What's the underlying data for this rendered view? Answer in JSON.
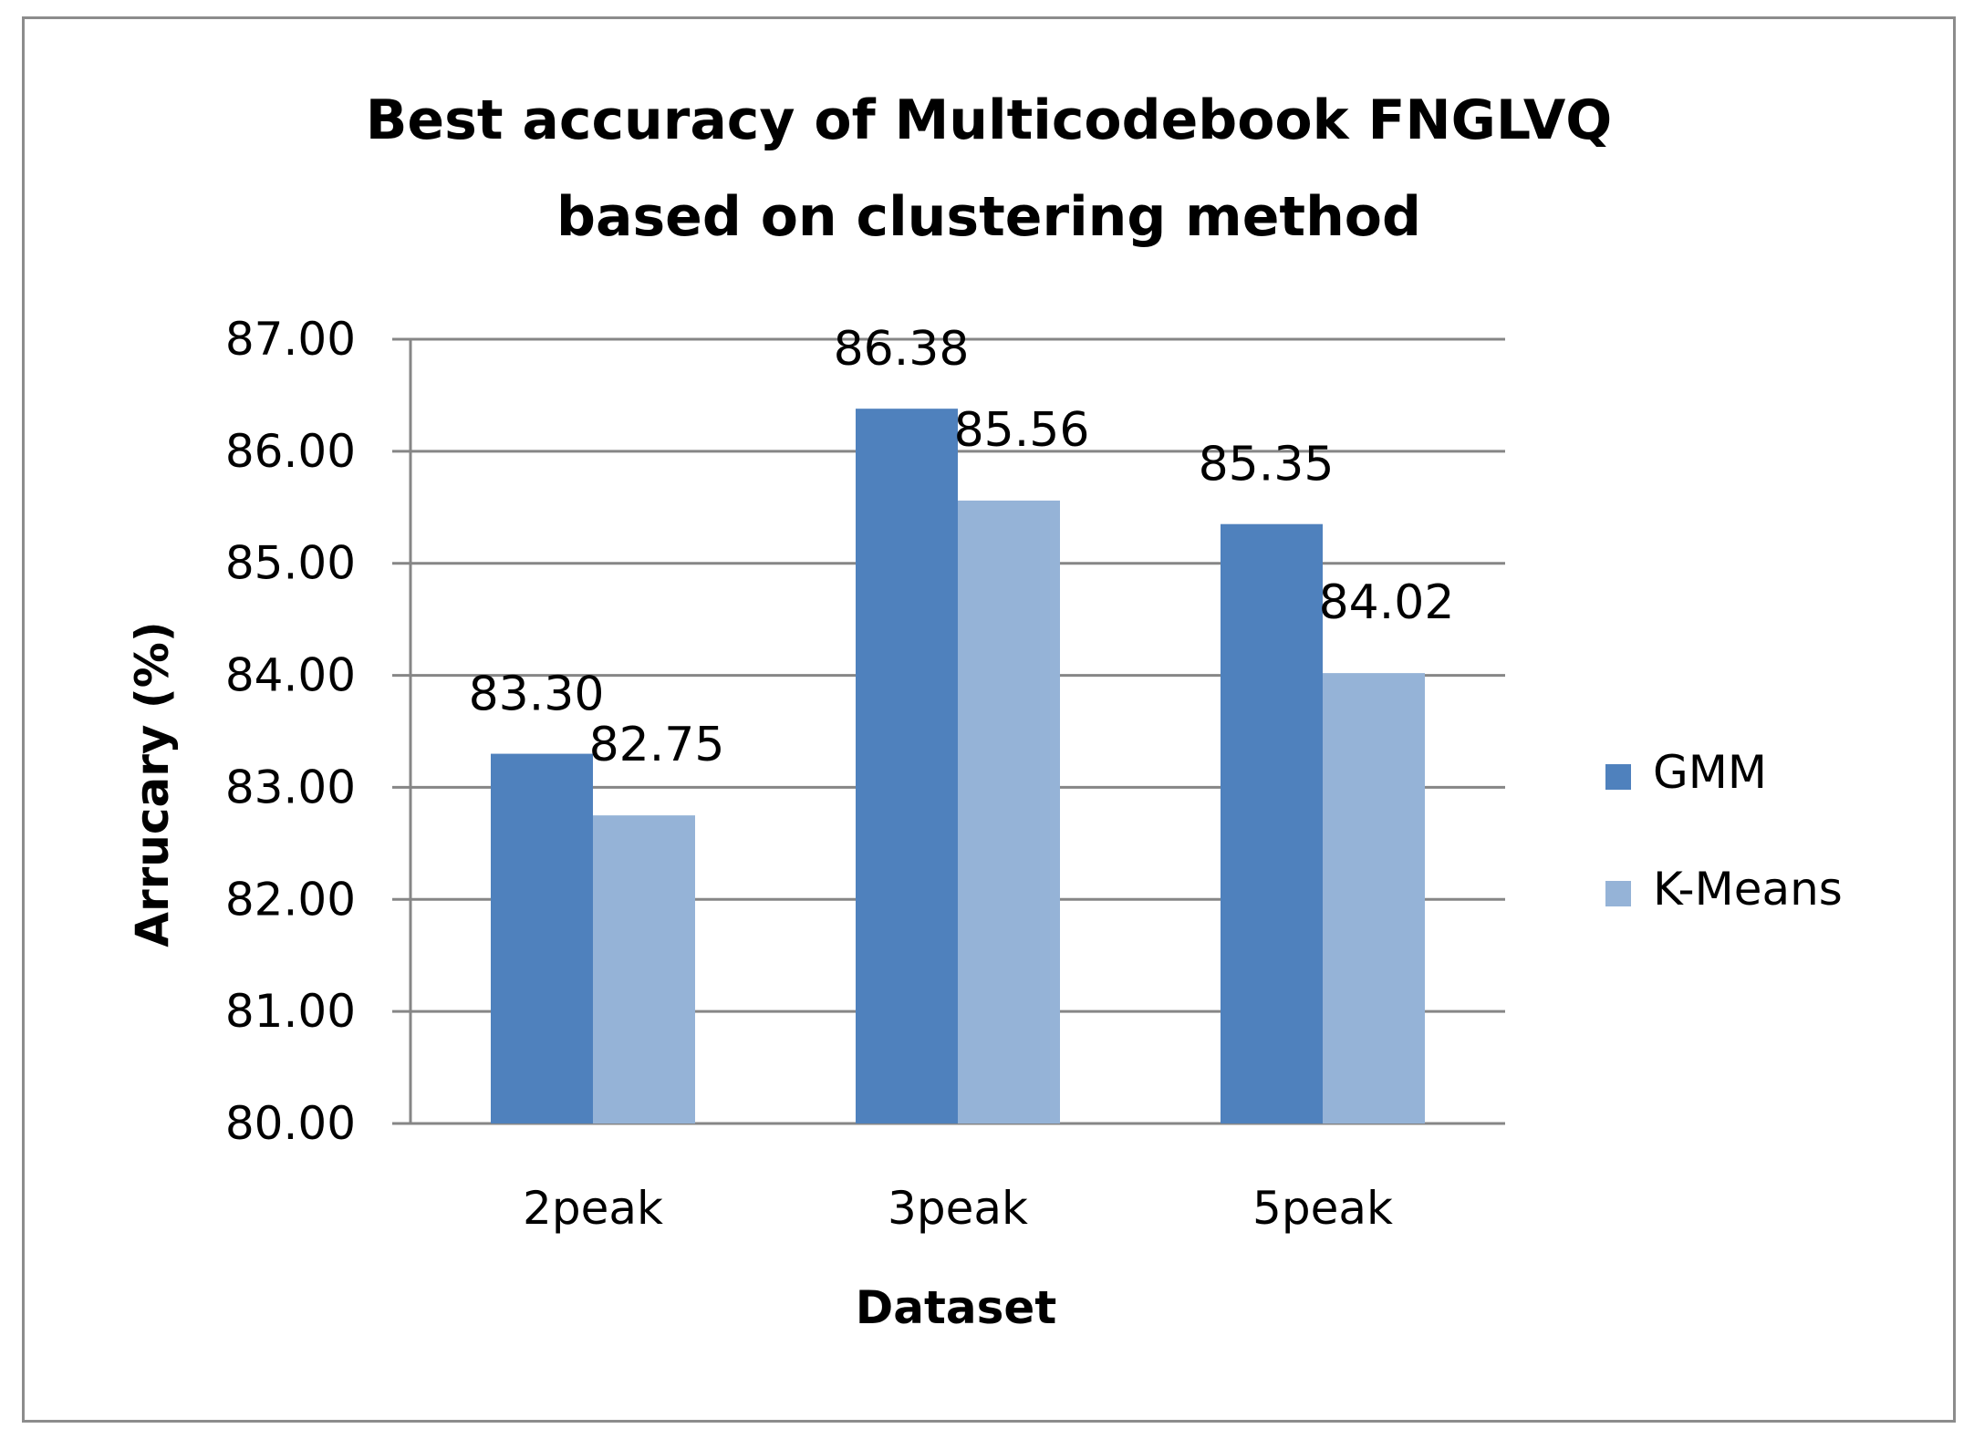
{
  "chart_data": {
    "type": "bar",
    "title_lines": [
      "Best accuracy of Multicodebook FNGLVQ",
      "based on clustering method"
    ],
    "xlabel": "Dataset",
    "ylabel": "Arrucary (%)",
    "categories": [
      "2peak",
      "3peak",
      "5peak"
    ],
    "series": [
      {
        "name": "GMM",
        "values": [
          83.3,
          86.38,
          85.35
        ],
        "labels": [
          "83.30",
          "86.38",
          "85.35"
        ],
        "color": "#4f81bd"
      },
      {
        "name": "K-Means",
        "values": [
          82.75,
          85.56,
          84.02
        ],
        "labels": [
          "82.75",
          "85.56",
          "84.02"
        ],
        "color": "#95b3d7"
      }
    ],
    "ylim": [
      80,
      87
    ],
    "yticks": [
      "80.00",
      "81.00",
      "82.00",
      "83.00",
      "84.00",
      "85.00",
      "86.00",
      "87.00"
    ],
    "grid": true,
    "legend_position": "right"
  }
}
